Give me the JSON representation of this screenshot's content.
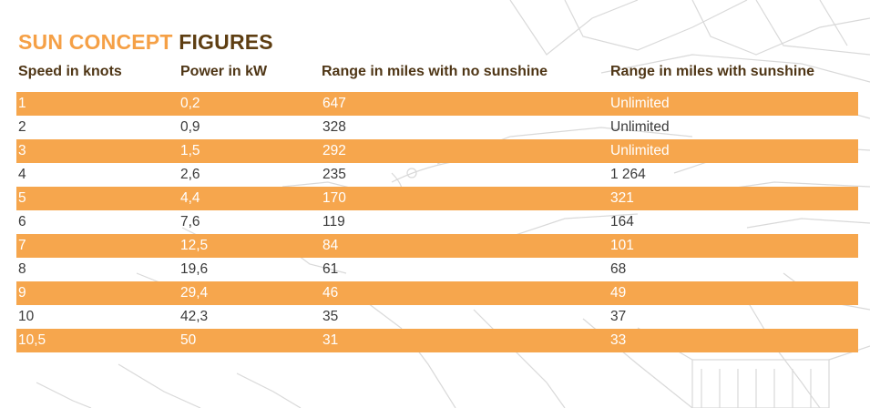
{
  "title": {
    "part1": "SUN CONCEPT",
    "part2": "FIGURES"
  },
  "colors": {
    "accent_orange": "#f5a046",
    "row_shade": "#f6a64d",
    "title_brown": "#5e3e12"
  },
  "table": {
    "headers": [
      "Speed in knots",
      "Power in kW",
      "Range in miles with no sunshine",
      "Range in miles with sunshine"
    ],
    "rows": [
      [
        "1",
        "0,2",
        "647",
        "Unlimited"
      ],
      [
        "2",
        "0,9",
        "328",
        "Unlimited"
      ],
      [
        "3",
        "1,5",
        "292",
        "Unlimited"
      ],
      [
        "4",
        "2,6",
        "235",
        "1 264"
      ],
      [
        "5",
        "4,4",
        "170",
        "321"
      ],
      [
        "6",
        "7,6",
        "119",
        "164"
      ],
      [
        "7",
        "12,5",
        "84",
        "101"
      ],
      [
        "8",
        "19,6",
        "61",
        "68"
      ],
      [
        "9",
        "29,4",
        "46",
        "49"
      ],
      [
        "10",
        "42,3",
        "35",
        "37"
      ],
      [
        "10,5",
        "50",
        "31",
        "33"
      ]
    ]
  }
}
